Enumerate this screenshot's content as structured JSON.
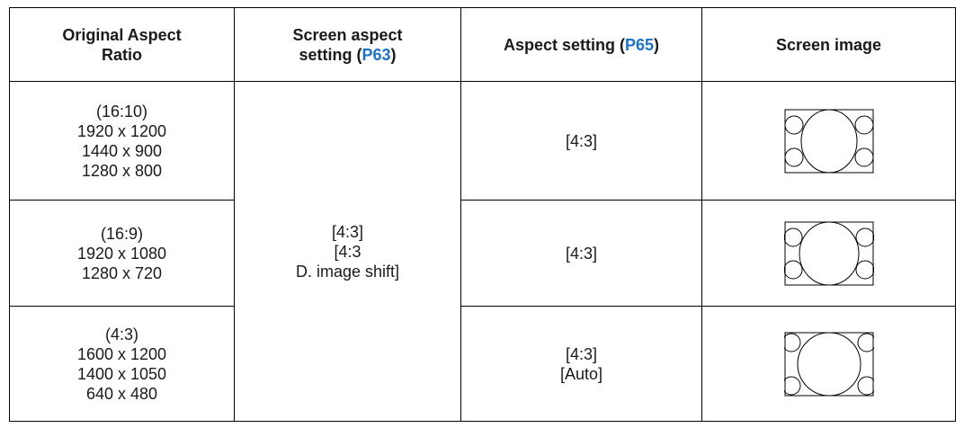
{
  "table": {
    "header": [
      {
        "text": "Original Aspect Ratio"
      },
      {
        "text": "Screen aspect setting (",
        "link": "P63",
        "end": ")"
      },
      {
        "text": "Aspect setting (",
        "link": "P65",
        "end": ")"
      },
      {
        "text": "Screen image"
      }
    ],
    "screen_setting": [
      "[4:3]",
      "[4:3",
      "D. image shift]"
    ],
    "rows": [
      {
        "source": [
          "(16:10)",
          "1920 x 1200",
          "1440 x 900",
          "1280 x 800"
        ],
        "aspect": [
          "[4:3]"
        ]
      },
      {
        "source": [
          "(16:9)",
          "1920 x 1080",
          "1280 x 720"
        ],
        "aspect": [
          "[4:3]"
        ]
      },
      {
        "source": [
          "(4:3)",
          "1600 x 1200",
          "1400 x 1050",
          "640 x 480"
        ],
        "aspect": [
          "[4:3]",
          "[Auto]"
        ]
      }
    ]
  }
}
